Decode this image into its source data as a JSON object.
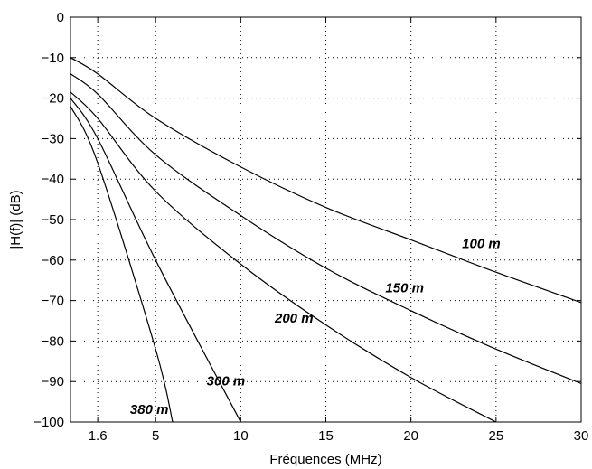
{
  "chart_data": {
    "type": "line",
    "xlabel": "Fréquences (MHz)",
    "ylabel": "|H(f)| (dB)",
    "xlim": [
      0,
      30
    ],
    "ylim": [
      -100,
      0
    ],
    "xticks": [
      1.6,
      5,
      10,
      15,
      20,
      25,
      30
    ],
    "xtick_labels": [
      "1.6",
      "5",
      "10",
      "15",
      "20",
      "25",
      "30"
    ],
    "yticks": [
      0,
      -10,
      -20,
      -30,
      -40,
      -50,
      -60,
      -70,
      -80,
      -90,
      -100
    ],
    "ytick_labels": [
      "0",
      "−10",
      "−20",
      "−30",
      "−40",
      "−50",
      "−60",
      "−70",
      "−80",
      "−90",
      "−100"
    ],
    "grid": true,
    "series": [
      {
        "name": "100 m",
        "x": [
          0,
          1.6,
          5,
          10,
          15,
          20,
          25,
          30
        ],
        "values": [
          -10,
          -14,
          -25,
          -37,
          -47,
          -55,
          -63,
          -70.5
        ]
      },
      {
        "name": "150 m",
        "x": [
          0,
          1.6,
          5,
          10,
          15,
          20,
          25,
          30
        ],
        "values": [
          -14,
          -19,
          -34,
          -49,
          -62,
          -72.5,
          -82,
          -90.5
        ]
      },
      {
        "name": "200 m",
        "x": [
          0,
          1.6,
          5,
          10,
          15,
          20,
          25
        ],
        "values": [
          -18.5,
          -25,
          -43,
          -61,
          -76,
          -89,
          -100
        ]
      },
      {
        "name": "300 m",
        "x": [
          0,
          1.6,
          5,
          10
        ],
        "values": [
          -20,
          -30,
          -60,
          -100
        ]
      },
      {
        "name": "380 m",
        "x": [
          0,
          1.6,
          5,
          6
        ],
        "values": [
          -22,
          -36,
          -82,
          -100
        ]
      }
    ],
    "annotations": [
      {
        "text": "100 m",
        "x": 23.0,
        "y": -57
      },
      {
        "text": "150 m",
        "x": 18.5,
        "y": -68
      },
      {
        "text": "200 m",
        "x": 12.0,
        "y": -75.5
      },
      {
        "text": "300 m",
        "x": 8.0,
        "y": -91
      },
      {
        "text": "380 m",
        "x": 3.5,
        "y": -98
      }
    ]
  }
}
